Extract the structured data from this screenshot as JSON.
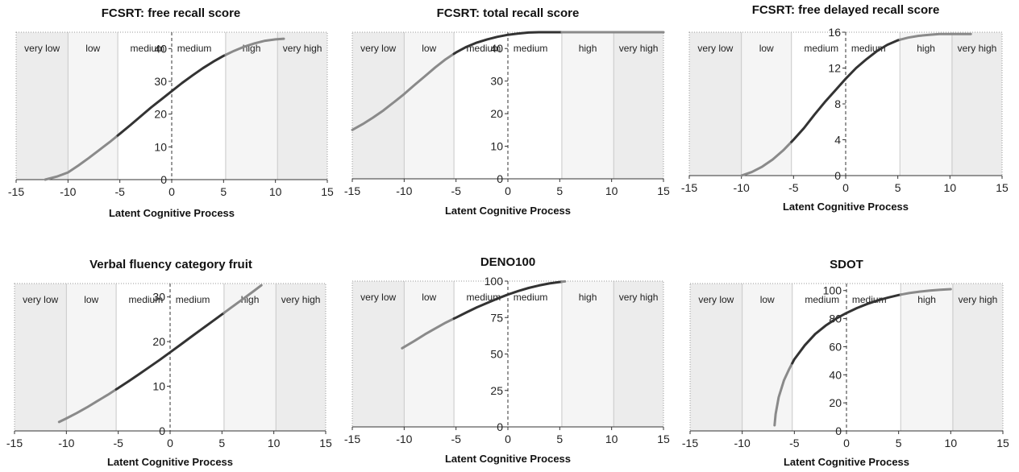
{
  "bands": [
    "very low",
    "low",
    "medium",
    "medium",
    "high",
    "very high"
  ],
  "band_boundaries": [
    -15,
    -10,
    -5.2,
    0,
    5.2,
    10.2,
    15
  ],
  "band_colors": [
    "#ececec",
    "#f5f5f5",
    "#ffffff",
    "#ffffff",
    "#f5f5f5",
    "#ececec"
  ],
  "line_colors": {
    "outer": "#8a8a8a",
    "inner": "#333333"
  },
  "chart_data": [
    {
      "type": "line",
      "title": "FCSRT: free recall score",
      "xlabel": "Latent Cognitive Process",
      "ylabel": "",
      "xlim": [
        -15,
        15
      ],
      "ylim": [
        0,
        45
      ],
      "x_ticks": [
        "-15",
        "-10",
        "-5",
        "0",
        "5",
        "10",
        "15"
      ],
      "y_ticks": [
        {
          "v": 0,
          "t": "0"
        },
        {
          "v": 10,
          "t": "10"
        },
        {
          "v": 20,
          "t": "20"
        },
        {
          "v": 30,
          "t": "30"
        },
        {
          "v": 40,
          "t": "40"
        }
      ],
      "x": [
        -12.2,
        -11,
        -10,
        -9,
        -8,
        -7,
        -6,
        -5,
        -4,
        -3,
        -2,
        -1,
        0,
        1,
        2,
        3,
        4,
        5,
        6,
        7,
        8,
        9,
        10,
        10.8
      ],
      "y": [
        0,
        1,
        2.2,
        4.3,
        6.6,
        9,
        11.4,
        14,
        16.6,
        19.3,
        22,
        24.5,
        27,
        29.5,
        31.8,
        34,
        36,
        37.8,
        39.3,
        40.6,
        41.6,
        42.4,
        42.8,
        43
      ]
    },
    {
      "type": "line",
      "title": "FCSRT: total recall score",
      "xlabel": "Latent Cognitive Process",
      "ylabel": "",
      "xlim": [
        -15,
        15
      ],
      "ylim": [
        0,
        45
      ],
      "x_ticks": [
        "-15",
        "-10",
        "-5",
        "0",
        "5",
        "10",
        "15"
      ],
      "y_ticks": [
        {
          "v": 0,
          "t": "0"
        },
        {
          "v": 10,
          "t": "10"
        },
        {
          "v": 20,
          "t": "20"
        },
        {
          "v": 30,
          "t": "30"
        },
        {
          "v": 40,
          "t": "40"
        }
      ],
      "x": [
        -15,
        -14,
        -13,
        -12,
        -11,
        -10,
        -9,
        -8,
        -7,
        -6,
        -5,
        -4,
        -3,
        -2,
        -1,
        0,
        1,
        2,
        3,
        4,
        5,
        6,
        8,
        10,
        12,
        15
      ],
      "y": [
        15,
        16.8,
        18.8,
        21,
        23.5,
        26,
        28.8,
        31.5,
        34.2,
        36.7,
        38.8,
        40.5,
        41.8,
        42.8,
        43.6,
        44.2,
        44.6,
        44.9,
        45,
        45,
        45,
        45,
        45,
        45,
        45,
        45
      ]
    },
    {
      "type": "line",
      "title": "FCSRT: free delayed recall score",
      "xlabel": "Latent Cognitive Process",
      "ylabel": "",
      "xlim": [
        -15,
        15
      ],
      "ylim": [
        0,
        16
      ],
      "x_ticks": [
        "-15",
        "-10",
        "-5",
        "0",
        "5",
        "10",
        "15"
      ],
      "y_ticks": [
        {
          "v": 0,
          "t": "0"
        },
        {
          "v": 4,
          "t": "4"
        },
        {
          "v": 8,
          "t": "8"
        },
        {
          "v": 12,
          "t": "12"
        },
        {
          "v": 16,
          "t": "16"
        }
      ],
      "x": [
        -10,
        -9,
        -8,
        -7,
        -6,
        -5,
        -4,
        -3,
        -2,
        -1,
        0,
        1,
        2,
        3,
        4,
        5,
        6,
        7,
        8,
        9,
        10,
        11,
        12
      ],
      "y": [
        0,
        0.4,
        1,
        1.8,
        2.8,
        4,
        5.3,
        6.8,
        8.2,
        9.5,
        10.8,
        12,
        13,
        13.9,
        14.6,
        15.1,
        15.4,
        15.6,
        15.7,
        15.8,
        15.8,
        15.8,
        15.8
      ]
    },
    {
      "type": "line",
      "title": "Verbal fluency category fruit",
      "xlabel": "Latent Cognitive Process",
      "ylabel": "",
      "xlim": [
        -15,
        15
      ],
      "ylim": [
        0,
        33
      ],
      "x_ticks": [
        "-15",
        "-10",
        "-5",
        "0",
        "5",
        "10",
        "15"
      ],
      "y_ticks": [
        {
          "v": 0,
          "t": "0"
        },
        {
          "v": 10,
          "t": "10"
        },
        {
          "v": 20,
          "t": "20"
        },
        {
          "v": 30,
          "t": "30"
        }
      ],
      "x": [
        -10.7,
        -10,
        -9,
        -8,
        -7,
        -6,
        -5,
        -4,
        -3,
        -2,
        -1,
        0,
        1,
        2,
        3,
        4,
        5,
        6,
        7,
        8,
        8.8
      ],
      "y": [
        2,
        2.8,
        4,
        5.3,
        6.7,
        8.1,
        9.6,
        11.1,
        12.7,
        14.3,
        15.9,
        17.6,
        19.3,
        21,
        22.7,
        24.4,
        26.1,
        27.8,
        29.5,
        31.2,
        32.6
      ]
    },
    {
      "type": "line",
      "title": "DENO100",
      "xlabel": "Latent Cognitive Process",
      "ylabel": "",
      "xlim": [
        -15,
        15
      ],
      "ylim": [
        0,
        100
      ],
      "x_ticks": [
        "-15",
        "-10",
        "-5",
        "0",
        "5",
        "10",
        "15"
      ],
      "y_ticks": [
        {
          "v": 0,
          "t": "0"
        },
        {
          "v": 25,
          "t": "25"
        },
        {
          "v": 50,
          "t": "50"
        },
        {
          "v": 75,
          "t": "75"
        },
        {
          "v": 100,
          "t": "100"
        }
      ],
      "x": [
        -10.2,
        -9,
        -8,
        -7,
        -6,
        -5,
        -4,
        -3,
        -2,
        -1,
        0,
        1,
        2,
        3,
        4,
        5,
        5.5
      ],
      "y": [
        54,
        59,
        63.5,
        67.5,
        71.5,
        75,
        78.5,
        82,
        85,
        88,
        90.8,
        93.2,
        95.3,
        97,
        98.4,
        99.4,
        99.8
      ]
    },
    {
      "type": "line",
      "title": "SDOT",
      "xlabel": "Latent Cognitive Process",
      "ylabel": "",
      "xlim": [
        -15,
        15
      ],
      "ylim": [
        0,
        105
      ],
      "x_ticks": [
        "-15",
        "-10",
        "-5",
        "0",
        "5",
        "10",
        "15"
      ],
      "y_ticks": [
        {
          "v": 0,
          "t": "0"
        },
        {
          "v": 20,
          "t": "20"
        },
        {
          "v": 40,
          "t": "40"
        },
        {
          "v": 60,
          "t": "60"
        },
        {
          "v": 80,
          "t": "80"
        },
        {
          "v": 100,
          "t": "100"
        }
      ],
      "x": [
        -6.9,
        -6.8,
        -6.5,
        -6,
        -5.5,
        -5,
        -4,
        -3,
        -2,
        -1,
        0,
        1,
        2,
        3,
        4,
        5,
        6,
        7,
        8,
        9,
        10
      ],
      "y": [
        4,
        12,
        24,
        36,
        44,
        51,
        61,
        69,
        75,
        80,
        84,
        87.5,
        90.5,
        93,
        95,
        96.8,
        98.2,
        99.2,
        100,
        100.6,
        101
      ]
    }
  ]
}
